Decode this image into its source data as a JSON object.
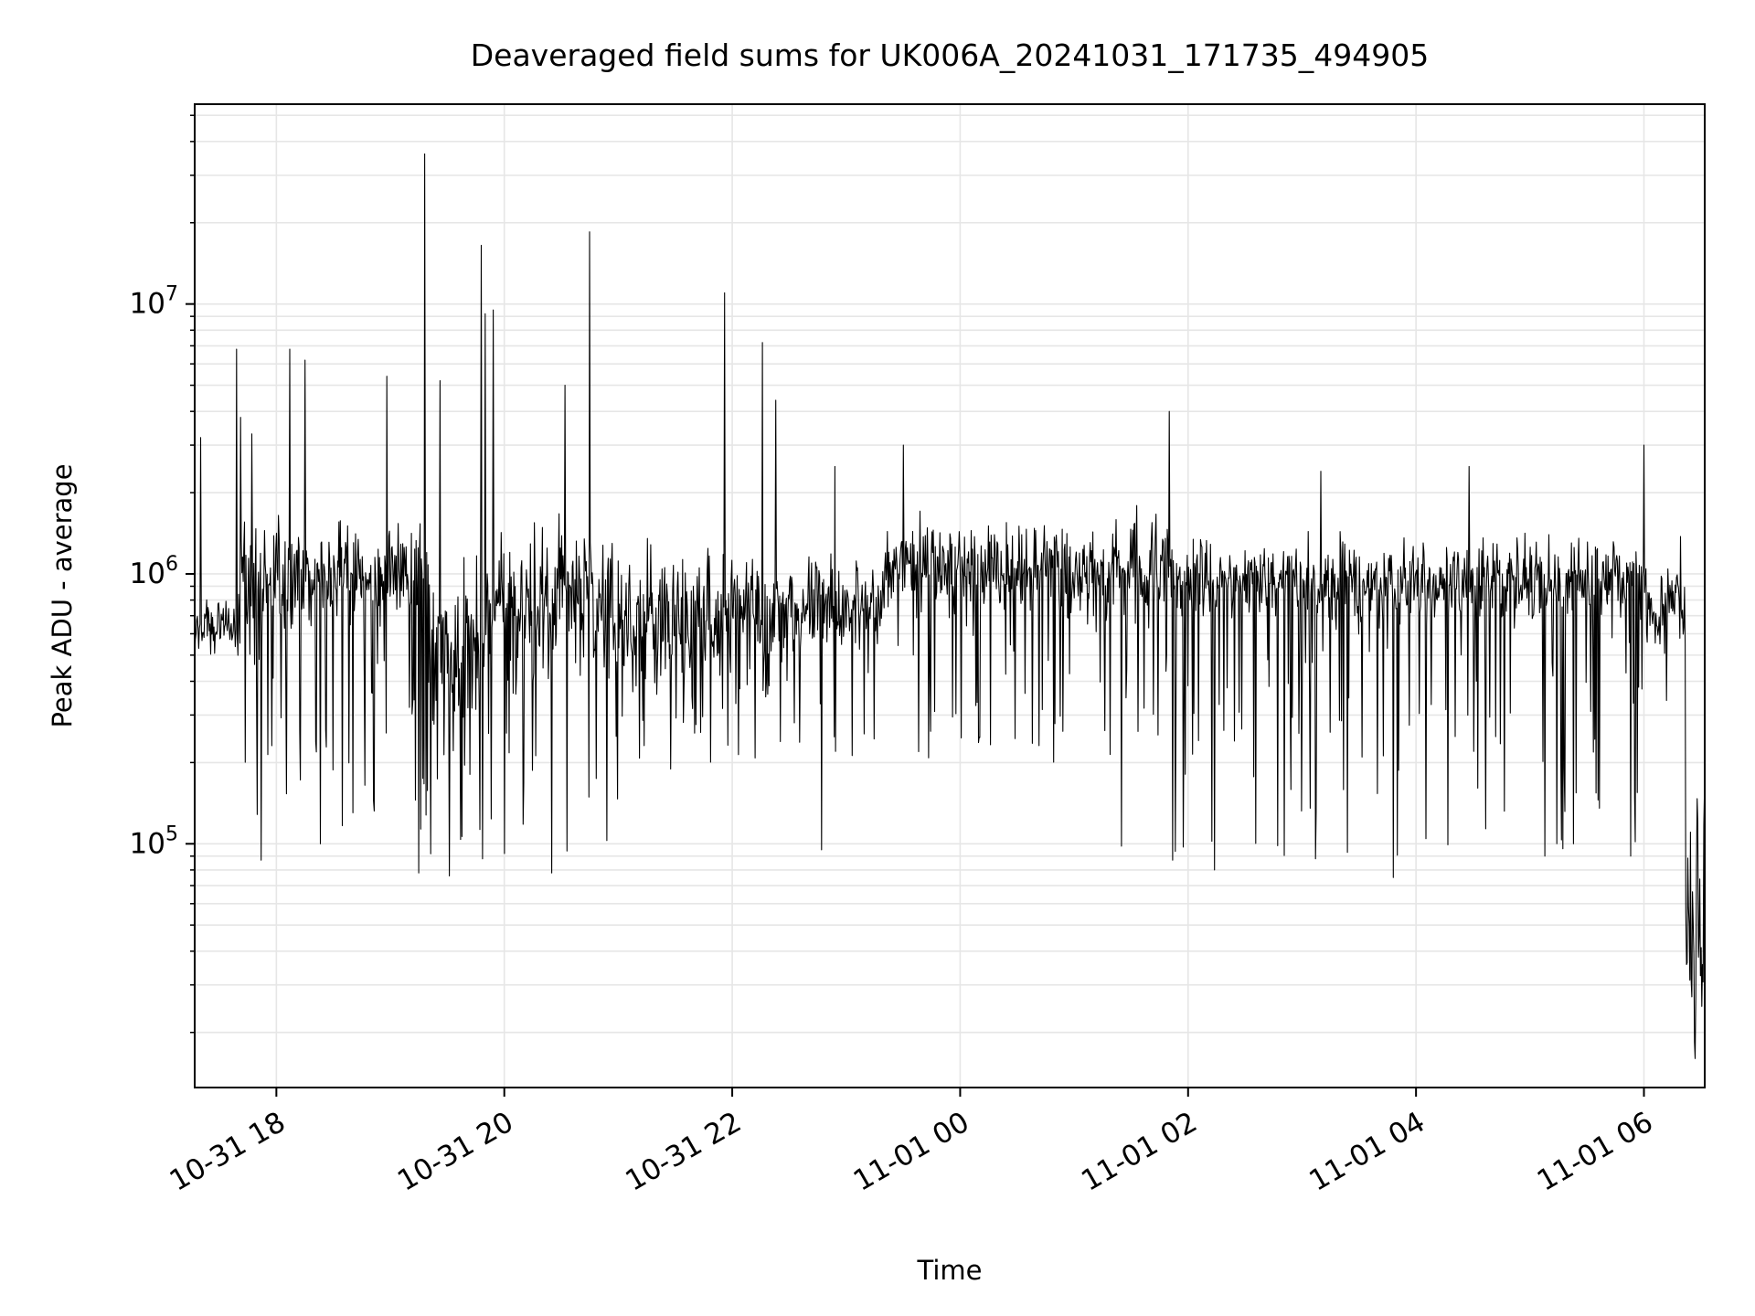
{
  "chart_data": {
    "type": "line",
    "title": "Deaveraged field sums for UK006A_20241031_171735_494905",
    "xlabel": "Time",
    "ylabel": "Peak ADU - average",
    "x_start": "2024-10-31 17:17",
    "x_end": "2024-11-01 06:32",
    "xlim": [
      "2024-10-31 17:17",
      "2024-11-01 06:32"
    ],
    "x_ticks": [
      {
        "value": "2024-10-31 18:00",
        "label": "10-31 18"
      },
      {
        "value": "2024-10-31 20:00",
        "label": "10-31 20"
      },
      {
        "value": "2024-10-31 22:00",
        "label": "10-31 22"
      },
      {
        "value": "2024-11-01 00:00",
        "label": "11-01 00"
      },
      {
        "value": "2024-11-01 02:00",
        "label": "11-01 02"
      },
      {
        "value": "2024-11-01 04:00",
        "label": "11-01 04"
      },
      {
        "value": "2024-11-01 06:00",
        "label": "11-01 06"
      }
    ],
    "y_scale": "log",
    "ylim": [
      12500,
      55000000
    ],
    "y_ticks": [
      {
        "value": 100000,
        "base": "10",
        "exp": "5"
      },
      {
        "value": 1000000,
        "base": "10",
        "exp": "6"
      },
      {
        "value": 10000000,
        "base": "10",
        "exp": "7"
      }
    ],
    "grid": true,
    "line_color": "#000000",
    "grid_color": "#e6e6e6",
    "baseline_segments": [
      {
        "from": "2024-10-31 17:17",
        "to": "2024-10-31 17:40",
        "level": 650000,
        "low": 480000,
        "high": 900000
      },
      {
        "from": "2024-10-31 17:40",
        "to": "2024-10-31 19:20",
        "level": 1000000,
        "low": 110000,
        "high": 2000000
      },
      {
        "from": "2024-10-31 19:20",
        "to": "2024-10-31 19:50",
        "level": 550000,
        "low": 80000,
        "high": 1700000
      },
      {
        "from": "2024-10-31 19:50",
        "to": "2024-10-31 21:00",
        "level": 800000,
        "low": 100000,
        "high": 1900000
      },
      {
        "from": "2024-10-31 21:00",
        "to": "2024-10-31 22:00",
        "level": 700000,
        "low": 180000,
        "high": 1600000
      },
      {
        "from": "2024-10-31 22:00",
        "to": "2024-10-31 23:20",
        "level": 750000,
        "low": 200000,
        "high": 1400000
      },
      {
        "from": "2024-10-31 23:20",
        "to": "2024-11-01 00:00",
        "level": 1100000,
        "low": 200000,
        "high": 2000000
      },
      {
        "from": "2024-11-01 00:00",
        "to": "2024-11-01 01:50",
        "level": 1050000,
        "low": 200000,
        "high": 2000000
      },
      {
        "from": "2024-11-01 01:50",
        "to": "2024-11-01 06:00",
        "level": 950000,
        "low": 90000,
        "high": 1600000
      },
      {
        "from": "2024-11-01 06:00",
        "to": "2024-11-01 06:22",
        "level": 800000,
        "low": 250000,
        "high": 1700000
      },
      {
        "from": "2024-11-01 06:22",
        "to": "2024-11-01 06:32",
        "level": 60000,
        "low": 16000,
        "high": 230000
      }
    ],
    "spikes": [
      {
        "x": "2024-10-31 17:20",
        "y": 3200000
      },
      {
        "x": "2024-10-31 17:39",
        "y": 6800000
      },
      {
        "x": "2024-10-31 17:41",
        "y": 3800000
      },
      {
        "x": "2024-10-31 17:47",
        "y": 3300000
      },
      {
        "x": "2024-10-31 18:07",
        "y": 6800000
      },
      {
        "x": "2024-10-31 18:15",
        "y": 6200000
      },
      {
        "x": "2024-10-31 18:58",
        "y": 5400000
      },
      {
        "x": "2024-10-31 19:18",
        "y": 36000000
      },
      {
        "x": "2024-10-31 19:26",
        "y": 5200000
      },
      {
        "x": "2024-10-31 19:48",
        "y": 16500000
      },
      {
        "x": "2024-10-31 19:50",
        "y": 9200000
      },
      {
        "x": "2024-10-31 19:54",
        "y": 9500000
      },
      {
        "x": "2024-10-31 20:32",
        "y": 5000000
      },
      {
        "x": "2024-10-31 20:45",
        "y": 18500000
      },
      {
        "x": "2024-10-31 21:56",
        "y": 11000000
      },
      {
        "x": "2024-10-31 22:16",
        "y": 7200000
      },
      {
        "x": "2024-10-31 22:23",
        "y": 4400000
      },
      {
        "x": "2024-10-31 22:54",
        "y": 2500000
      },
      {
        "x": "2024-10-31 23:30",
        "y": 3000000
      },
      {
        "x": "2024-11-01 01:50",
        "y": 4000000
      },
      {
        "x": "2024-11-01 03:10",
        "y": 2400000
      },
      {
        "x": "2024-11-01 04:28",
        "y": 2500000
      },
      {
        "x": "2024-11-01 06:00",
        "y": 3000000
      }
    ],
    "dips": [
      {
        "x": "2024-10-31 17:52",
        "y": 87000
      },
      {
        "x": "2024-10-31 18:23",
        "y": 100000
      },
      {
        "x": "2024-10-31 19:15",
        "y": 78000
      },
      {
        "x": "2024-10-31 19:31",
        "y": 76000
      },
      {
        "x": "2024-10-31 20:00",
        "y": 92000
      },
      {
        "x": "2024-10-31 20:25",
        "y": 78000
      },
      {
        "x": "2024-10-31 20:33",
        "y": 94000
      },
      {
        "x": "2024-10-31 22:47",
        "y": 95000
      },
      {
        "x": "2024-11-01 01:25",
        "y": 98000
      },
      {
        "x": "2024-11-01 01:52",
        "y": 87000
      },
      {
        "x": "2024-11-01 02:14",
        "y": 80000
      },
      {
        "x": "2024-11-01 03:07",
        "y": 88000
      },
      {
        "x": "2024-11-01 03:48",
        "y": 75000
      },
      {
        "x": "2024-11-01 05:08",
        "y": 90000
      },
      {
        "x": "2024-11-01 05:53",
        "y": 90000
      },
      {
        "x": "2024-11-01 06:27",
        "y": 16000
      }
    ]
  }
}
